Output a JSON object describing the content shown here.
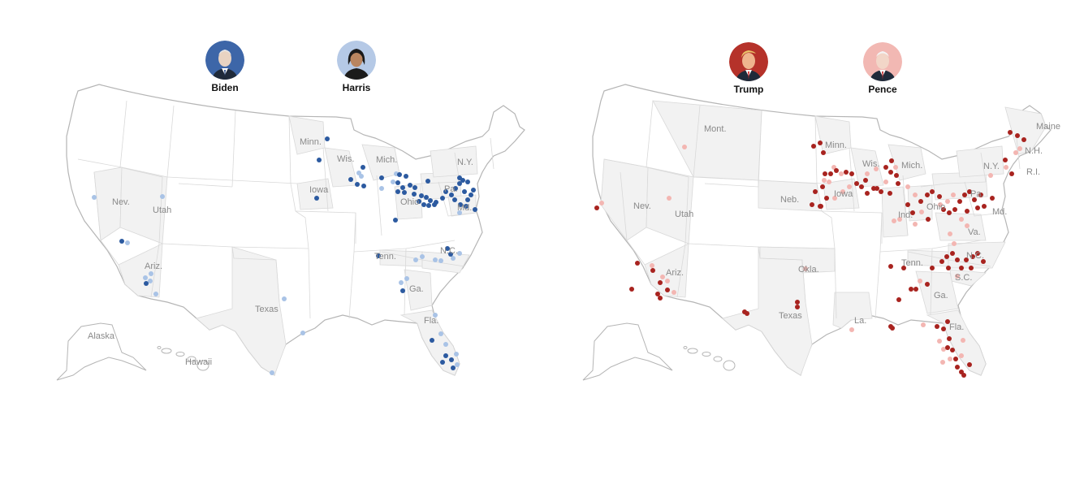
{
  "colors": {
    "land": "#ffffff",
    "visited_state_fill": "#f2f2f2",
    "border": "#d9d9d9",
    "outline": "#b5b5b5",
    "label": "#8a8a8a",
    "dem_dark": "#2c5aa0",
    "dem_light": "#a9c3e6",
    "rep_dark": "#a8231f",
    "rep_light": "#f3b6b2"
  },
  "democratic": {
    "candidates": [
      {
        "name": "Biden",
        "ring": "#3d66a8",
        "portrait": "portrait-biden-icon"
      },
      {
        "name": "Harris",
        "ring": "#b5c9e6",
        "portrait": "portrait-harris-icon"
      }
    ],
    "labels": [
      "Minn.",
      "Wis.",
      "Mich.",
      "N.Y.",
      "Iowa",
      "Pa.",
      "Ohio",
      "Md.",
      "Nev.",
      "Utah",
      "Tenn.",
      "N.C.",
      "Ariz.",
      "Ga.",
      "Texas",
      "Fla.",
      "Alaska",
      "Hawaii"
    ]
  },
  "republican": {
    "candidates": [
      {
        "name": "Trump",
        "ring": "#b5322a",
        "portrait": "portrait-trump-icon"
      },
      {
        "name": "Pence",
        "ring": "#f2b8b3",
        "portrait": "portrait-pence-icon"
      }
    ],
    "labels": [
      "Mont.",
      "Maine",
      "Minn.",
      "N.H.",
      "Wis.",
      "Mich.",
      "R.I.",
      "N.Y.",
      "Iowa",
      "Neb.",
      "Pa.",
      "Ohio",
      "Md.",
      "Ind.",
      "Nev.",
      "Utah",
      "Va.",
      "N.C.",
      "Okla.",
      "Tenn.",
      "Ariz.",
      "S.C.",
      "Ga.",
      "Texas",
      "La.",
      "Fla."
    ]
  }
}
